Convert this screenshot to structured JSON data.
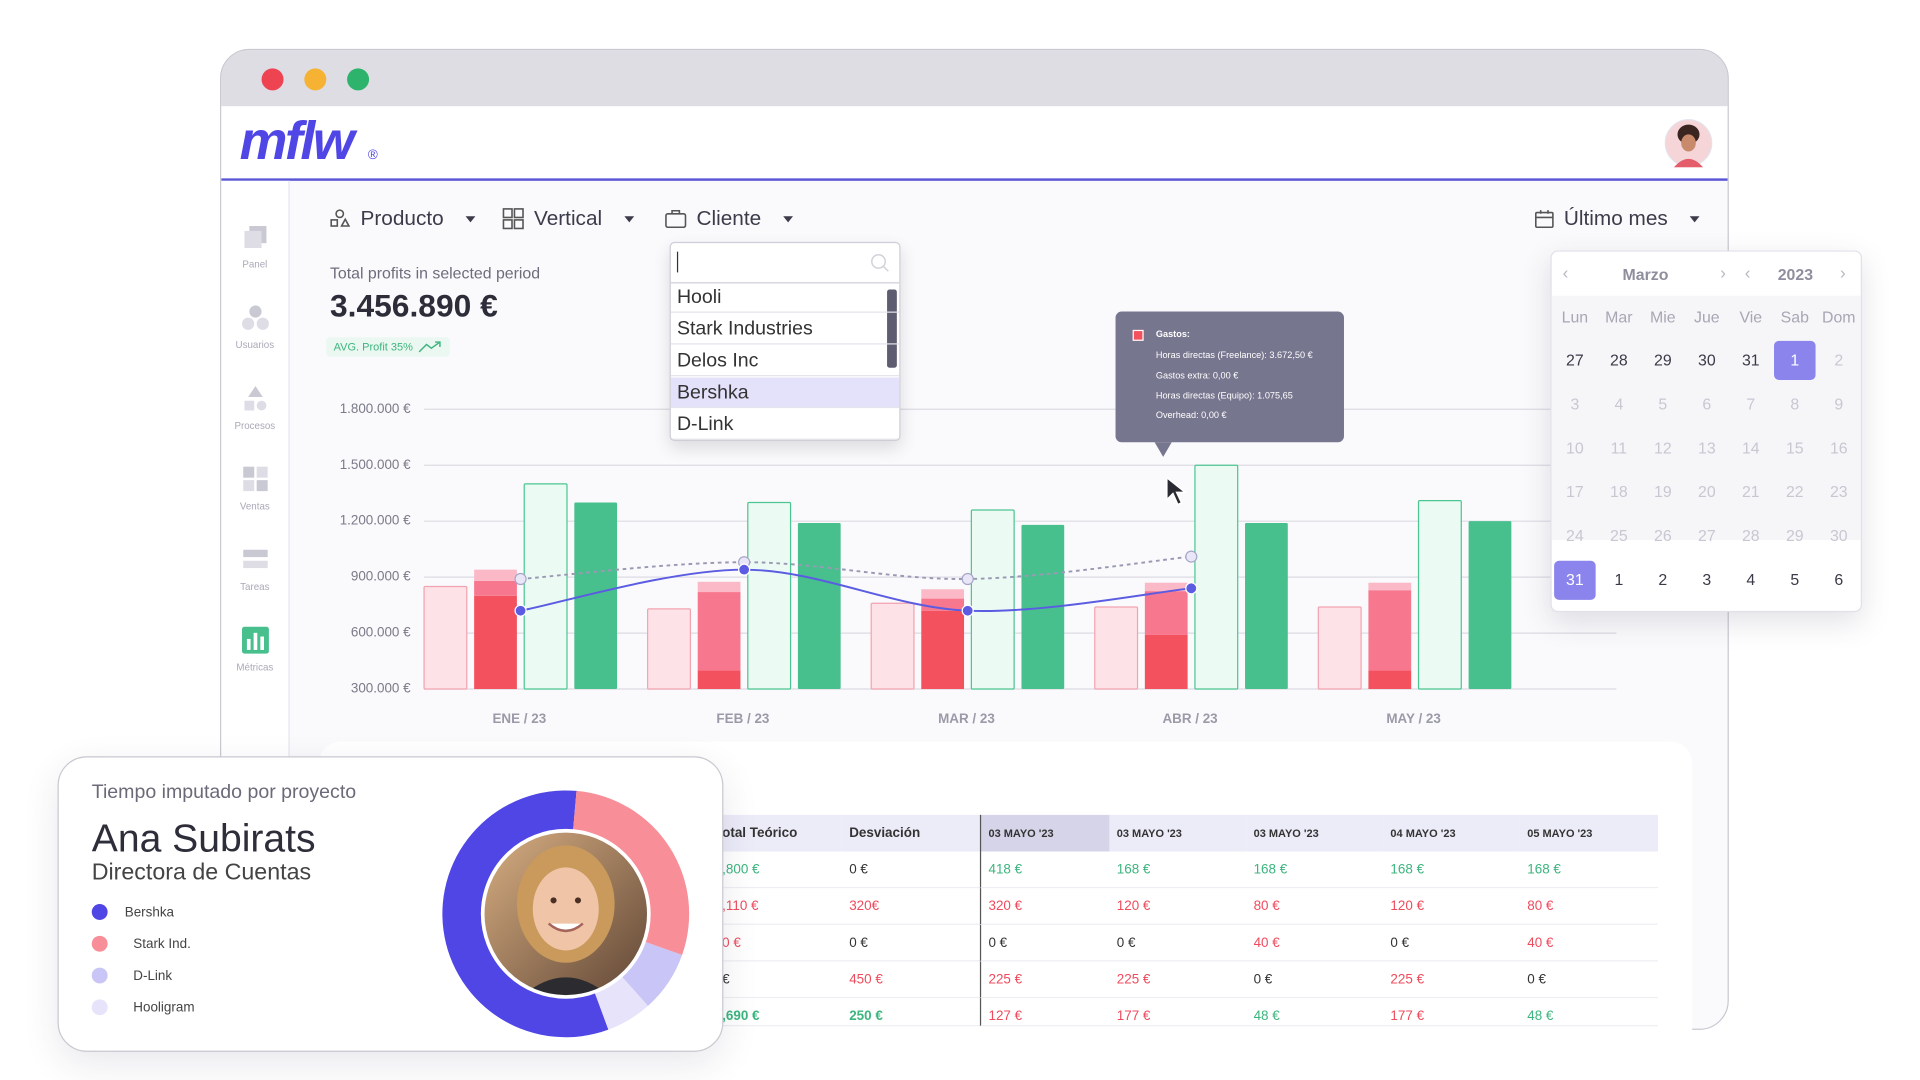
{
  "window": {
    "logo": "mflw",
    "logo_mark": "®"
  },
  "sidebar": [
    "Panel",
    "Usuarios",
    "Procesos",
    "Ventas",
    "Tareas",
    "Métricas"
  ],
  "filters": [
    "Producto",
    "Vertical",
    "Cliente"
  ],
  "period": "Último mes",
  "kpi": {
    "label": "Total profits in selected period",
    "value": "3.456.890 €",
    "badge": "AVG. Profit 35%"
  },
  "dropdown": {
    "items": [
      "Hooli",
      "Stark Industries",
      "Delos Inc",
      "Bershka",
      "D-Link"
    ]
  },
  "tooltip": {
    "title": "Gastos:",
    "lines": [
      "Horas directas (Freelance): 3.672,50 €",
      "Gastos extra: 0,00 €",
      "Horas directas (Equipo): 1.075,65",
      "Overhead: 0,00 €"
    ]
  },
  "calendar": {
    "month": "Marzo",
    "year": "2023",
    "weekdays": [
      "Lun",
      "Mar",
      "Mie",
      "Jue",
      "Vie",
      "Sab",
      "Dom"
    ],
    "weeks": [
      [
        27,
        28,
        29,
        30,
        31,
        1,
        2
      ],
      [
        3,
        4,
        5,
        6,
        7,
        8,
        9
      ],
      [
        10,
        11,
        12,
        13,
        14,
        15,
        16
      ],
      [
        17,
        18,
        19,
        20,
        21,
        22,
        23
      ],
      [
        24,
        25,
        26,
        27,
        28,
        29,
        30
      ],
      [
        31,
        1,
        2,
        3,
        4,
        5,
        6
      ]
    ]
  },
  "chart": {
    "type": "bar",
    "categories": [
      "ENE / 23",
      "FEB / 23",
      "MAR / 23",
      "ABR / 23",
      "MAY / 23"
    ],
    "ylim": [
      300000,
      1800000
    ],
    "yticks": [
      {
        "value": 300000,
        "label": "300.000 €"
      },
      {
        "value": 600000,
        "label": "600.000 €"
      },
      {
        "value": 900000,
        "label": "900.000 €"
      },
      {
        "value": 1200000,
        "label": "1.200.000 €"
      },
      {
        "value": 1500000,
        "label": "1.500.000 €"
      },
      {
        "value": 1800000,
        "label": "1.800.000 €"
      }
    ],
    "grid": true,
    "bars": [
      {
        "color": "#fde3e7",
        "stroke": "#f2a3b0",
        "values": [
          850000,
          730000,
          760000,
          740000,
          740000
        ]
      },
      {
        "stack": [
          {
            "color": "#f4515f",
            "values": [
              800000,
              400000,
              720000,
              590000,
              400000
            ]
          },
          {
            "color": "#f7778f",
            "values": [
              80000,
              420000,
              65000,
              235000,
              430000
            ]
          },
          {
            "color": "#fbb9c7",
            "values": [
              60000,
              55000,
              50000,
              45000,
              40000
            ]
          }
        ]
      },
      {
        "color": "#ebfbf3",
        "stroke": "#4cc592",
        "values": [
          1400000,
          1300000,
          1260000,
          1500000,
          1310000
        ]
      },
      {
        "color": "#47c08d",
        "values": [
          1300000,
          1190000,
          1180000,
          1190000,
          1200000
        ]
      }
    ],
    "lines": [
      {
        "color": "#9a99b4",
        "style": "dashed",
        "values": [
          890000,
          980000,
          890000,
          1010000,
          null
        ]
      },
      {
        "color": "#5b5ce2",
        "style": "solid",
        "values": [
          720000,
          940000,
          720000,
          840000,
          null
        ]
      }
    ]
  },
  "table": {
    "headers": [
      "otal Teórico",
      "Desviación",
      "03 MAYO '23",
      "03 MAYO '23",
      "03 MAYO '23",
      "04 MAYO '23",
      "05 MAYO '23"
    ],
    "rows": [
      [
        ",800 €",
        "0 €",
        "418 €",
        "168 €",
        "168 €",
        "168 €",
        "168 €"
      ],
      [
        ",110 €",
        "320€",
        "320 €",
        "120 €",
        "80 €",
        "120 €",
        "80 €"
      ],
      [
        "0 €",
        "0 €",
        "0 €",
        "0 €",
        "40 €",
        "0 €",
        "40 €"
      ],
      [
        "€",
        "450 €",
        "225 €",
        "225 €",
        "0 €",
        "225 €",
        "0 €"
      ],
      [
        ",690 €",
        "250 €",
        "127 €",
        "177 €",
        "48 €",
        "177 €",
        "48 €"
      ]
    ]
  },
  "card": {
    "caption": "Tiempo imputado por proyecto",
    "name": "Ana Subirats",
    "role": "Directora de Cuentas",
    "legend": [
      {
        "name": "Bershka",
        "color": "#4f46e5",
        "value": 57
      },
      {
        "name": "Stark Ind.",
        "color": "#f78e98",
        "value": 29
      },
      {
        "name": "D-Link",
        "color": "#c9c5f6",
        "value": 8
      },
      {
        "name": "Hooligram",
        "color": "#e6e3fb",
        "value": 6
      }
    ]
  }
}
